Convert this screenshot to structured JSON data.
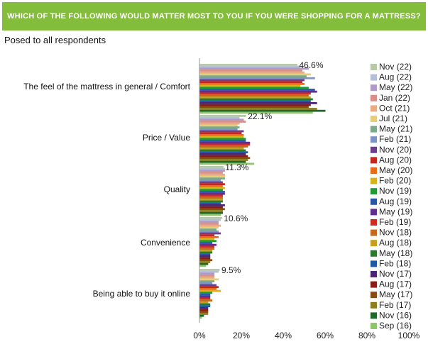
{
  "header": {
    "title": "WHICH OF THE FOLLOWING WOULD MATTER MOST TO YOU IF YOU WERE SHOPPING FOR A MATTRESS?",
    "subtitle": "Posed to all respondents"
  },
  "chart_data": {
    "type": "bar",
    "orientation": "horizontal",
    "title": "WHICH OF THE FOLLOWING WOULD MATTER MOST TO YOU IF YOU WERE SHOPPING FOR A MATTRESS?",
    "subtitle": "Posed to all respondents",
    "xlabel": "",
    "ylabel": "",
    "xlim": [
      0,
      100
    ],
    "x_ticks": [
      "0%",
      "20%",
      "40%",
      "60%",
      "80%",
      "100%"
    ],
    "grid": false,
    "legend_position": "right",
    "categories": [
      "The feel of the mattress in general / Comfort",
      "Price / Value",
      "Quality",
      "Convenience",
      "Being able to buy it online"
    ],
    "data_labels": [
      "46.6%",
      "22.1%",
      "11.3%",
      "10.6%",
      "9.5%"
    ],
    "series": [
      {
        "name": "Nov (22)",
        "color": "#b7c9a6",
        "values": [
          46.6,
          22.1,
          11.3,
          10.6,
          9.5
        ]
      },
      {
        "name": "Aug (22)",
        "color": "#b4bfd9",
        "values": [
          48,
          19,
          12,
          10,
          9
        ]
      },
      {
        "name": "May (22)",
        "color": "#b09ac8",
        "values": [
          52,
          21,
          12,
          9,
          7
        ]
      },
      {
        "name": "Jan (22)",
        "color": "#d88f8a",
        "values": [
          49,
          22,
          11,
          9,
          7
        ]
      },
      {
        "name": "Oct (21)",
        "color": "#e9ab84",
        "values": [
          50,
          19,
          12,
          10,
          7
        ]
      },
      {
        "name": "Jul (21)",
        "color": "#e6cd79",
        "values": [
          53,
          18,
          12,
          9,
          9
        ]
      },
      {
        "name": "May (21)",
        "color": "#7daa86",
        "values": [
          51,
          19,
          12,
          8,
          7
        ]
      },
      {
        "name": "Feb (21)",
        "color": "#7d95c5",
        "values": [
          55,
          18,
          10,
          9,
          6
        ]
      },
      {
        "name": "Nov (20)",
        "color": "#6a3f8d",
        "values": [
          50,
          21,
          11,
          10,
          8
        ]
      },
      {
        "name": "Aug (20)",
        "color": "#c4281c",
        "values": [
          49,
          20,
          12,
          7,
          9
        ]
      },
      {
        "name": "May (20)",
        "color": "#e66c1a",
        "values": [
          50,
          21,
          11,
          9,
          8
        ]
      },
      {
        "name": "Feb (20)",
        "color": "#d8b21c",
        "values": [
          48,
          21,
          12,
          7,
          10
        ]
      },
      {
        "name": "Nov (19)",
        "color": "#1f9a34",
        "values": [
          52,
          22,
          11,
          8,
          6
        ]
      },
      {
        "name": "Aug (19)",
        "color": "#2857a8",
        "values": [
          55,
          22,
          12,
          6,
          5
        ]
      },
      {
        "name": "May (19)",
        "color": "#5f2f90",
        "values": [
          56,
          24,
          12,
          8,
          5
        ]
      },
      {
        "name": "Feb (19)",
        "color": "#d12a1e",
        "values": [
          53,
          24,
          11,
          7,
          5
        ]
      },
      {
        "name": "Nov (18)",
        "color": "#c36a20",
        "values": [
          52,
          23,
          11,
          7,
          6
        ]
      },
      {
        "name": "Aug (18)",
        "color": "#c79e22",
        "values": [
          53,
          21,
          11,
          6,
          4
        ]
      },
      {
        "name": "May (18)",
        "color": "#2a7a2c",
        "values": [
          54,
          22,
          11,
          6,
          5
        ]
      },
      {
        "name": "Feb (18)",
        "color": "#1d5aa6",
        "values": [
          53,
          23,
          10,
          5,
          5
        ]
      },
      {
        "name": "Nov (17)",
        "color": "#4a2676",
        "values": [
          56,
          22,
          12,
          5,
          4
        ]
      },
      {
        "name": "Aug (17)",
        "color": "#8c1c16",
        "values": [
          53,
          23,
          11,
          5,
          4
        ]
      },
      {
        "name": "May (17)",
        "color": "#8a4b12",
        "values": [
          52,
          24,
          12,
          6,
          4
        ]
      },
      {
        "name": "Feb (17)",
        "color": "#8c7e1a",
        "values": [
          56,
          23,
          11,
          5,
          4
        ]
      },
      {
        "name": "Nov (16)",
        "color": "#1d6a2a",
        "values": [
          60,
          22,
          11,
          4,
          2
        ]
      },
      {
        "name": "Sep (16)",
        "color": "#8fc56a",
        "values": [
          54,
          26,
          10,
          3,
          1
        ]
      }
    ]
  }
}
